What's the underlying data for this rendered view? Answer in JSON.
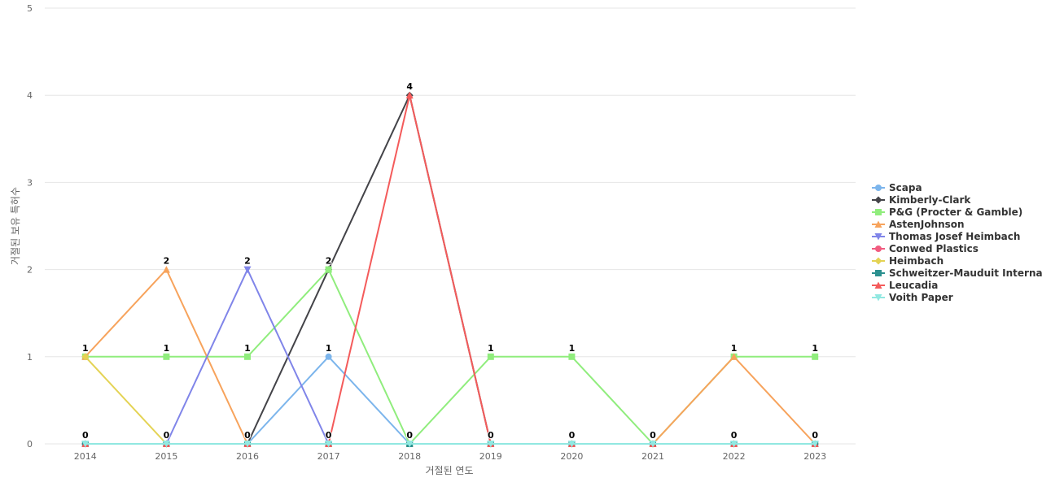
{
  "chart_data": {
    "type": "line",
    "title": "",
    "xlabel": "거절된 연도",
    "ylabel": "거절된 보유 특허수",
    "categories": [
      "2014",
      "2015",
      "2016",
      "2017",
      "2018",
      "2019",
      "2020",
      "2021",
      "2022",
      "2023"
    ],
    "yticks": [
      "0",
      "1",
      "2",
      "3",
      "4",
      "5"
    ],
    "ylim": [
      0,
      5
    ],
    "grid": true,
    "legend_position": "right",
    "series": [
      {
        "name": "Scapa",
        "color": "#7cb5ec",
        "marker": "circle",
        "values": [
          0,
          0,
          0,
          1,
          0,
          0,
          0,
          0,
          0,
          0
        ]
      },
      {
        "name": "Kimberly-Clark",
        "color": "#434348",
        "marker": "diamond",
        "values": [
          0,
          0,
          0,
          2,
          4,
          0,
          0,
          0,
          0,
          0
        ]
      },
      {
        "name": "P&G (Procter & Gamble)",
        "color": "#90ed7d",
        "marker": "square",
        "values": [
          1,
          1,
          1,
          2,
          0,
          1,
          1,
          0,
          1,
          1
        ]
      },
      {
        "name": "AstenJohnson",
        "color": "#f7a35c",
        "marker": "triangle",
        "values": [
          1,
          2,
          0,
          0,
          0,
          0,
          0,
          0,
          1,
          0
        ]
      },
      {
        "name": "Thomas Josef Heimbach",
        "color": "#8085e9",
        "marker": "triangle-down",
        "values": [
          0,
          0,
          2,
          0,
          0,
          0,
          0,
          0,
          0,
          0
        ]
      },
      {
        "name": "Conwed Plastics",
        "color": "#f15c80",
        "marker": "circle",
        "values": [
          0,
          0,
          0,
          0,
          0,
          0,
          0,
          0,
          0,
          0
        ]
      },
      {
        "name": "Heimbach",
        "color": "#e4d354",
        "marker": "diamond",
        "values": [
          1,
          0,
          0,
          0,
          0,
          0,
          0,
          0,
          0,
          0
        ]
      },
      {
        "name": "Schweitzer-Mauduit Internat...",
        "color": "#2b908f",
        "marker": "square",
        "values": [
          0,
          0,
          0,
          0,
          0,
          0,
          0,
          0,
          0,
          0
        ]
      },
      {
        "name": "Leucadia",
        "color": "#f45b5b",
        "marker": "triangle",
        "values": [
          0,
          0,
          0,
          0,
          4,
          0,
          0,
          0,
          0,
          0
        ]
      },
      {
        "name": "Voith Paper",
        "color": "#91e8e1",
        "marker": "triangle-down",
        "values": [
          0,
          0,
          0,
          0,
          0,
          0,
          0,
          0,
          0,
          0
        ]
      }
    ],
    "data_labels": [
      {
        "x": "2014",
        "y": 1,
        "text": "1"
      },
      {
        "x": "2014",
        "y": 0,
        "text": "0"
      },
      {
        "x": "2015",
        "y": 2,
        "text": "2"
      },
      {
        "x": "2015",
        "y": 1,
        "text": "1"
      },
      {
        "x": "2015",
        "y": 0,
        "text": "0"
      },
      {
        "x": "2016",
        "y": 2,
        "text": "2"
      },
      {
        "x": "2016",
        "y": 1,
        "text": "1"
      },
      {
        "x": "2016",
        "y": 0,
        "text": "0"
      },
      {
        "x": "2017",
        "y": 2,
        "text": "2"
      },
      {
        "x": "2017",
        "y": 1,
        "text": "1"
      },
      {
        "x": "2017",
        "y": 0,
        "text": "0"
      },
      {
        "x": "2018",
        "y": 4,
        "text": "4"
      },
      {
        "x": "2018",
        "y": 0,
        "text": "0"
      },
      {
        "x": "2019",
        "y": 1,
        "text": "1"
      },
      {
        "x": "2019",
        "y": 0,
        "text": "0"
      },
      {
        "x": "2020",
        "y": 1,
        "text": "1"
      },
      {
        "x": "2020",
        "y": 0,
        "text": "0"
      },
      {
        "x": "2021",
        "y": 0,
        "text": "0"
      },
      {
        "x": "2022",
        "y": 1,
        "text": "1"
      },
      {
        "x": "2022",
        "y": 0,
        "text": "0"
      },
      {
        "x": "2023",
        "y": 1,
        "text": "1"
      },
      {
        "x": "2023",
        "y": 0,
        "text": "0"
      }
    ]
  }
}
